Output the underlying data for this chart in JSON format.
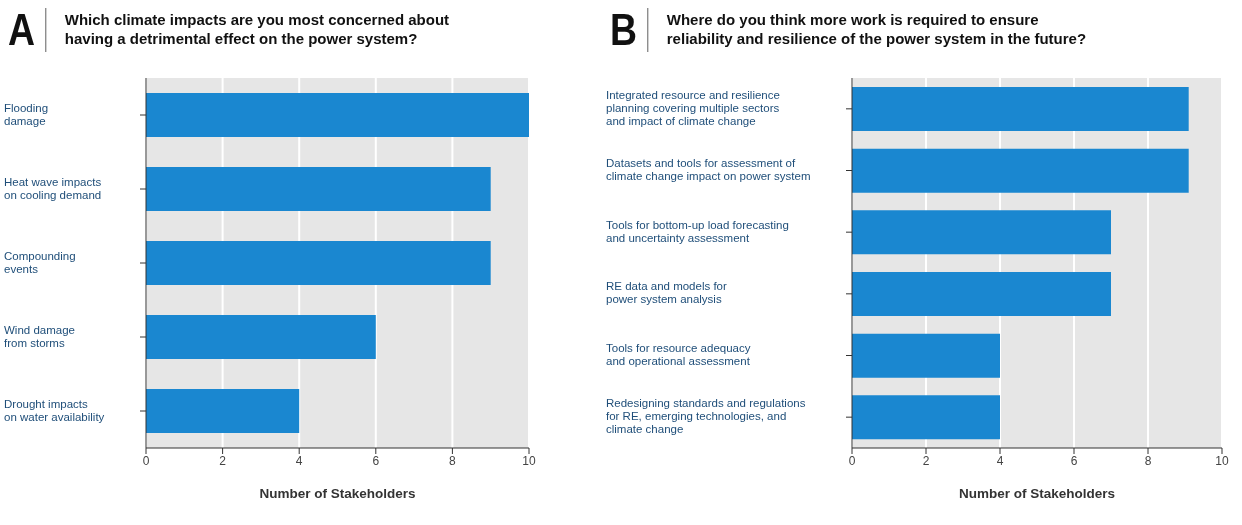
{
  "chart_data": [
    {
      "type": "bar",
      "orientation": "horizontal",
      "title": "Which climate impacts are you most concerned about\nhaving a detrimental effect on the power system?",
      "annotations": [
        "A"
      ],
      "xlabel": "Number of Stakeholders",
      "categories": [
        "Flooding\ndamage",
        "Heat wave impacts\non cooling demand",
        "Compounding\nevents",
        "Wind damage\nfrom storms",
        "Drought impacts\non water availability"
      ],
      "values": [
        10,
        9,
        9,
        6,
        4
      ],
      "color": "#1a87d0",
      "xlim": [
        0,
        10
      ],
      "xticks": [
        0,
        2,
        4,
        6,
        8,
        10
      ],
      "grid": "x"
    },
    {
      "type": "bar",
      "orientation": "horizontal",
      "title": "Where do you think more work is required to ensure\nreliability and resilience of the power system in the future?",
      "annotations": [
        "B"
      ],
      "xlabel": "Number of Stakeholders",
      "categories": [
        "Integrated resource and resilience\nplanning covering multiple sectors\nand impact of climate change",
        "Datasets and tools for assessment of\nclimate change impact on power system",
        "Tools for bottom-up load forecasting\nand uncertainty assessment",
        "RE data and models for\npower system analysis",
        "Tools for resource adequacy\nand operational assessment",
        "Redesigning standards and regulations\nfor RE, emerging technologies, and\nclimate change"
      ],
      "values": [
        9.1,
        9.1,
        7,
        7,
        4,
        4
      ],
      "color": "#1a87d0",
      "xlim": [
        0,
        10
      ],
      "xticks": [
        0,
        2,
        4,
        6,
        8,
        10
      ],
      "grid": "x"
    }
  ]
}
